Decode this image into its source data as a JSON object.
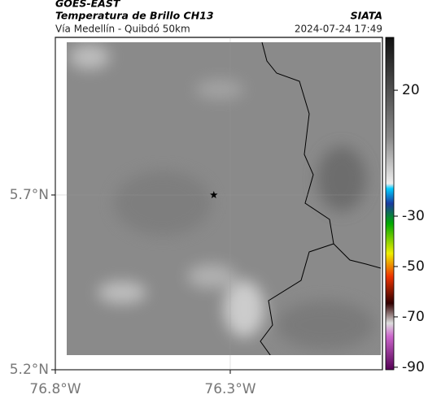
{
  "header": {
    "source": "GOES-EAST",
    "product": "Temperatura de Brillo CH13",
    "org": "SIATA",
    "region": "Vía Medellín - Quibdó 50km",
    "datetime": "2024-07-24 17:49"
  },
  "map": {
    "xlim": [
      -76.8,
      -75.865
    ],
    "ylim": [
      5.2,
      6.151
    ],
    "xticks": [
      {
        "value": -76.8,
        "label": "76.8°W"
      },
      {
        "value": -76.3,
        "label": "76.3°W"
      }
    ],
    "yticks": [
      {
        "value": 5.2,
        "label": "5.2°N"
      },
      {
        "value": 5.7,
        "label": "5.7°N"
      }
    ],
    "grid": true,
    "marker": {
      "lon": -76.347,
      "lat": 5.7
    }
  },
  "colorbar": {
    "lim": [
      -91,
      41
    ],
    "ticks": [
      20,
      -30,
      -50,
      -70,
      -90
    ]
  }
}
